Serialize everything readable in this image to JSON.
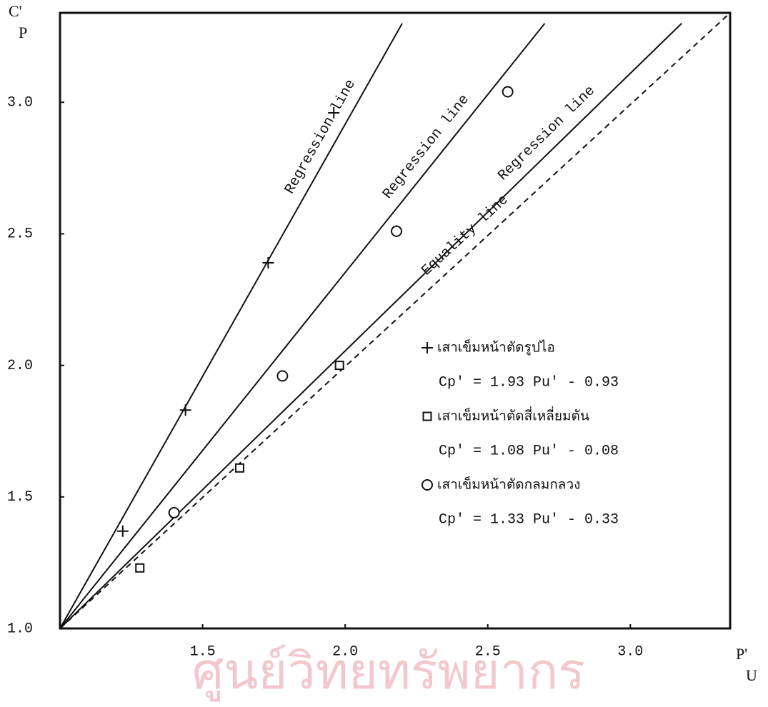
{
  "chart_data": {
    "type": "scatter",
    "x_label": "P'",
    "x_label_sub": "U",
    "y_label": "C'",
    "y_label_sub": "P",
    "watermark": "ศูนย์วิทยทรัพยากร",
    "xlim": [
      1.0,
      3.35
    ],
    "ylim": [
      1.0,
      3.34
    ],
    "xticks": [
      {
        "value": 1.5,
        "label": "1.5"
      },
      {
        "value": 2.0,
        "label": "2.0"
      },
      {
        "value": 2.5,
        "label": "2.5"
      },
      {
        "value": 3.0,
        "label": "3.0"
      }
    ],
    "yticks": [
      {
        "value": 1.0,
        "label": "1.0"
      },
      {
        "value": 1.5,
        "label": "1.5"
      },
      {
        "value": 2.0,
        "label": "2.0"
      },
      {
        "value": 2.5,
        "label": "2.5"
      },
      {
        "value": 3.0,
        "label": "3.0"
      }
    ],
    "color": "#111111",
    "series": [
      {
        "name": "เสาเข็มหน้าตัดรูปไอ",
        "equation": "Cp' = 1.93 Pu' - 0.93",
        "marker": "plus",
        "line_label": "Regression line",
        "x": [
          1.22,
          1.44,
          1.73,
          1.96
        ],
        "values": [
          1.37,
          1.83,
          2.39,
          2.96
        ],
        "line": {
          "x": [
            1.0,
            2.2
          ],
          "y": [
            1.0,
            3.3
          ]
        }
      },
      {
        "name": "เสาเข็มหน้าตัดสี่เหลี่ยมตัน",
        "equation": "Cp' = 1.08 Pu' - 0.08",
        "marker": "square",
        "line_label": "Regression line",
        "x": [
          1.28,
          1.63,
          1.98
        ],
        "values": [
          1.23,
          1.61,
          2.0
        ],
        "line": {
          "x": [
            1.0,
            3.18
          ],
          "y": [
            1.0,
            3.3
          ]
        }
      },
      {
        "name": "เสาเข็มหน้าตัดกลมกลวง",
        "equation": "Cp' = 1.33 Pu' - 0.33",
        "marker": "circle",
        "line_label": "Regression line",
        "x": [
          1.4,
          1.78,
          2.18,
          2.57
        ],
        "values": [
          1.44,
          1.96,
          2.51,
          3.04
        ],
        "line": {
          "x": [
            1.0,
            2.7
          ],
          "y": [
            1.0,
            3.3
          ]
        }
      }
    ],
    "equality_line": {
      "label": "Equality line",
      "x": [
        1.0,
        3.35
      ],
      "y": [
        1.0,
        3.34
      ]
    }
  }
}
